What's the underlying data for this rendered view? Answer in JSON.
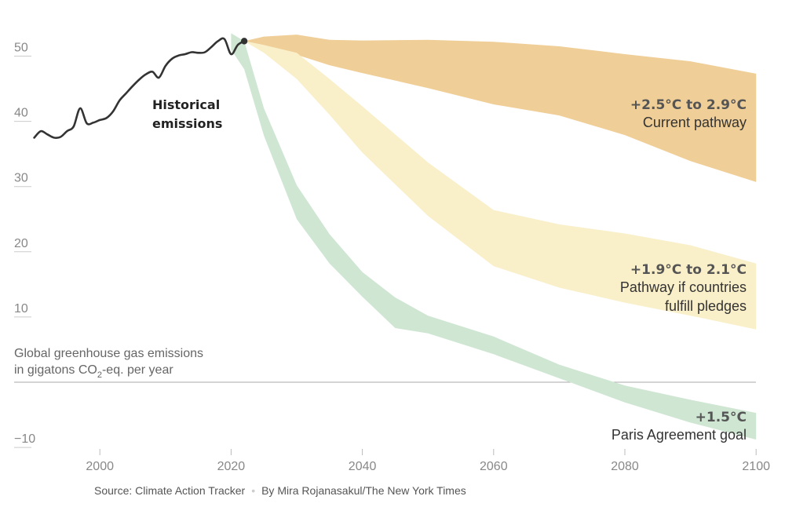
{
  "chart_data": {
    "type": "area",
    "ylabel_lines": [
      "Global greenhouse gas emissions",
      "in gigatons CO",
      "2",
      "-eq. per year"
    ],
    "xlim": [
      1990,
      2100
    ],
    "ylim": [
      -10,
      55
    ],
    "x_ticks": [
      2000,
      2020,
      2040,
      2060,
      2080,
      2100
    ],
    "y_ticks": [
      50,
      40,
      30,
      20,
      10,
      -10
    ],
    "zero_line": true,
    "colors": {
      "current": "#efce97",
      "pledges": "#f9efc9",
      "paris": "#cfe6d3",
      "historical": "#333333",
      "zero_line": "#aaaaaa"
    },
    "series": [
      {
        "name": "Historical emissions",
        "label_lines": [
          "Historical",
          "emissions"
        ],
        "type": "line",
        "x": [
          1990,
          1991,
          1992,
          1993,
          1994,
          1995,
          1996,
          1997,
          1998,
          1999,
          2000,
          2001,
          2002,
          2003,
          2004,
          2005,
          2006,
          2007,
          2008,
          2009,
          2010,
          2011,
          2012,
          2013,
          2014,
          2015,
          2016,
          2017,
          2018,
          2019,
          2020,
          2021,
          2022
        ],
        "y": [
          37.5,
          38.5,
          38.0,
          37.5,
          37.6,
          38.5,
          39.2,
          42.0,
          39.7,
          39.8,
          40.2,
          40.5,
          41.5,
          43.2,
          44.3,
          45.4,
          46.4,
          47.2,
          47.6,
          46.7,
          48.5,
          49.6,
          50.1,
          50.3,
          50.6,
          50.5,
          50.6,
          51.4,
          52.3,
          52.6,
          50.3,
          51.7,
          52.3
        ]
      },
      {
        "name": "Current pathway",
        "title": "+2.5°C to 2.9°C",
        "subtitle_lines": [
          "Current pathway"
        ],
        "type": "band",
        "x": [
          2022,
          2025,
          2030,
          2035,
          2040,
          2050,
          2060,
          2070,
          2080,
          2090,
          2100
        ],
        "upper": [
          52.3,
          53.0,
          53.3,
          52.5,
          52.4,
          52.5,
          52.2,
          51.5,
          50.3,
          49.2,
          47.3
        ],
        "lower": [
          52.3,
          51.7,
          50.2,
          48.6,
          47.4,
          45.1,
          42.6,
          40.9,
          37.9,
          33.9,
          30.7
        ]
      },
      {
        "name": "Pathway if countries fulfill pledges",
        "title": "+1.9°C to 2.1°C",
        "subtitle_lines": [
          "Pathway if countries",
          "fulfill pledges"
        ],
        "type": "band",
        "x": [
          2022,
          2025,
          2030,
          2035,
          2040,
          2050,
          2060,
          2070,
          2080,
          2090,
          2100
        ],
        "upper": [
          52.3,
          51.7,
          50.5,
          46.5,
          42.3,
          33.7,
          26.4,
          24.2,
          22.8,
          21.0,
          18.2
        ],
        "lower": [
          52.3,
          50.5,
          46.5,
          41.0,
          35.2,
          25.5,
          17.8,
          14.5,
          12.2,
          10.2,
          8.1
        ]
      },
      {
        "name": "Paris Agreement goal",
        "title": "+1.5°C",
        "subtitle_lines": [
          "Paris Agreement goal"
        ],
        "type": "band",
        "x": [
          2020,
          2022,
          2025,
          2030,
          2035,
          2040,
          2045,
          2050,
          2060,
          2070,
          2080,
          2090,
          2100
        ],
        "upper": [
          53.5,
          52.3,
          42.0,
          30.2,
          22.7,
          16.9,
          13.0,
          10.2,
          7.0,
          2.7,
          -0.5,
          -2.7,
          -4.7
        ],
        "lower": [
          51.0,
          48.0,
          37.8,
          25.0,
          18.2,
          13.1,
          8.3,
          7.5,
          4.3,
          0.6,
          -3.1,
          -6.2,
          -8.8
        ]
      }
    ]
  },
  "footer": {
    "source": "Source: Climate Action Tracker",
    "separator": "•",
    "byline": "By Mira Rojanasakul/The New York Times"
  }
}
